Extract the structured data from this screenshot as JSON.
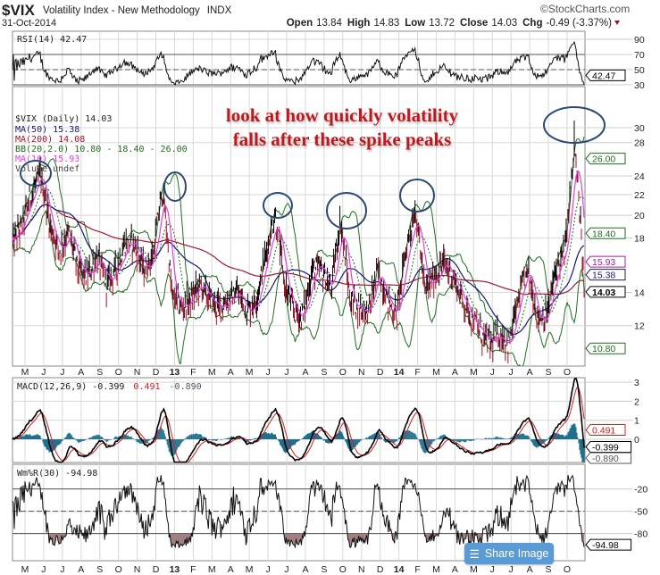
{
  "header": {
    "symbol": "$VIX",
    "name": "Volatility Index - New Methodology",
    "exchange": "INDX",
    "date": "31-Oct-2014",
    "watermark": "©StockCharts.com",
    "open_label": "Open",
    "open": "13.84",
    "high_label": "High",
    "high": "14.83",
    "low_label": "Low",
    "low": "13.72",
    "close_label": "Close",
    "close": "14.03",
    "chg_label": "Chg",
    "chg": "-0.49 (-3.37%)"
  },
  "annotation": {
    "line1": "look at how quickly volatility",
    "line2": "falls after these spike peaks"
  },
  "share_button": {
    "label": "Share Image",
    "icon": "layers-icon"
  },
  "colors": {
    "price_up": "#000000",
    "price_down": "#a0102a",
    "ma50": "#1a1a6e",
    "ma200": "#a01830",
    "bb": "#1f6e1f",
    "ma10": "#e040e0",
    "macd_hist": "#1f6e8c",
    "signal": "#d02020",
    "wmr_fill": "#a08080",
    "annotation": "#c0121c",
    "circle": "#2c4a6e"
  },
  "chart_data": {
    "type": "line",
    "x_labels": [
      "M",
      "J",
      "J",
      "A",
      "S",
      "O",
      "N",
      "D",
      "13",
      "F",
      "M",
      "A",
      "M",
      "J",
      "J",
      "A",
      "S",
      "O",
      "N",
      "D",
      "14",
      "F",
      "M",
      "A",
      "M",
      "J",
      "J",
      "A",
      "S",
      "O"
    ],
    "price": {
      "legend": "$VIX (Daily) 14.03",
      "ma50_legend": "MA(50) 15.38",
      "ma200_legend": "MA(200) 14.08",
      "bb_legend": "BB(20,2.0) 10.80 - 18.40 - 26.00",
      "ma10_legend": "MA(10) 15.93",
      "volume_legend": "Volume undef",
      "scale": "log",
      "ylim": [
        10,
        36
      ],
      "ticks": [
        12,
        14,
        18,
        20,
        22,
        24,
        28,
        30
      ],
      "last_values": {
        "bb_upper": "26.00",
        "bb_mid": "18.40",
        "ma10": "15.93",
        "ma50": "15.38",
        "close": "14.03",
        "bb_lower": "10.80"
      },
      "semimonthly_close": [
        17.5,
        19,
        22,
        24,
        19,
        17,
        18.5,
        15.5,
        15,
        16.5,
        14.5,
        15.5,
        17.5,
        17.5,
        15.5,
        16.5,
        22.5,
        13.8,
        13,
        13.5,
        14.5,
        13.5,
        13,
        13.5,
        14,
        12.8,
        13.5,
        16.5,
        20,
        14.5,
        12.8,
        12.5,
        15.5,
        15.5,
        14,
        19.5,
        13.5,
        13,
        12.8,
        15.5,
        13.5,
        12.5,
        17,
        20.5,
        14,
        15,
        16,
        15,
        13.5,
        12.5,
        11.5,
        11,
        11.5,
        11,
        13.5,
        15.5,
        12.5,
        12.5,
        15.5,
        17,
        27,
        14.03
      ],
      "peak_high": 31
    },
    "rsi": {
      "legend": "RSI(14) 42.47",
      "last": "42.47",
      "ylim": [
        30,
        90
      ],
      "ticks": [
        30,
        50,
        70,
        90
      ]
    },
    "macd": {
      "legend_a": "MACD(12,26,9) -0.399",
      "legend_b": "0.491",
      "legend_c": "-0.890",
      "macd_last": "-0.399",
      "signal_last": "0.491",
      "hist_last": "-0.890",
      "ticks": [
        0,
        1,
        2,
        3
      ]
    },
    "wmr": {
      "legend": "Wm%R(30) -94.98",
      "last": "-94.98",
      "ticks": [
        -20,
        -50,
        -80
      ]
    }
  }
}
